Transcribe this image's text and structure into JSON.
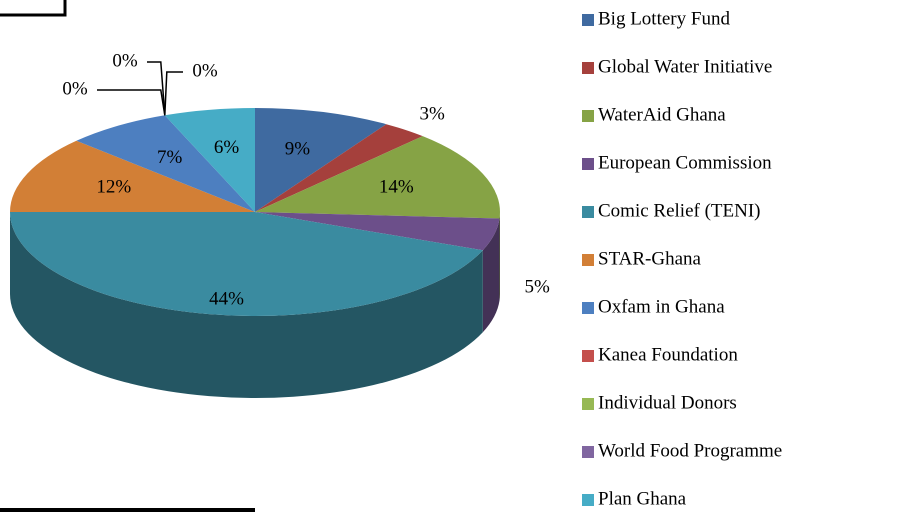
{
  "chart_data": {
    "type": "pie3d",
    "categories": [
      "Big Lottery Fund",
      "Global Water Initiative",
      "WaterAid Ghana",
      "European Commission",
      "Comic Relief (TENI)",
      "STAR-Ghana",
      "Oxfam in Ghana",
      "Kanea Foundation",
      "Individual Donors",
      "World Food Programme",
      "Plan Ghana"
    ],
    "values": [
      9,
      3,
      14,
      5,
      44,
      12,
      7,
      0,
      0,
      0,
      6
    ],
    "value_labels": [
      "9%",
      "3%",
      "14%",
      "5%",
      "44%",
      "12%",
      "7%",
      "0%",
      "0%",
      "0%",
      "6%"
    ],
    "colors": [
      "#3f6aa0",
      "#a5403c",
      "#86a345",
      "#6c4f8a",
      "#3a8ba0",
      "#d27f36",
      "#4d7fc0",
      "#c44f4c",
      "#97b954",
      "#8066a0",
      "#46acc6"
    ],
    "legend": "right"
  }
}
